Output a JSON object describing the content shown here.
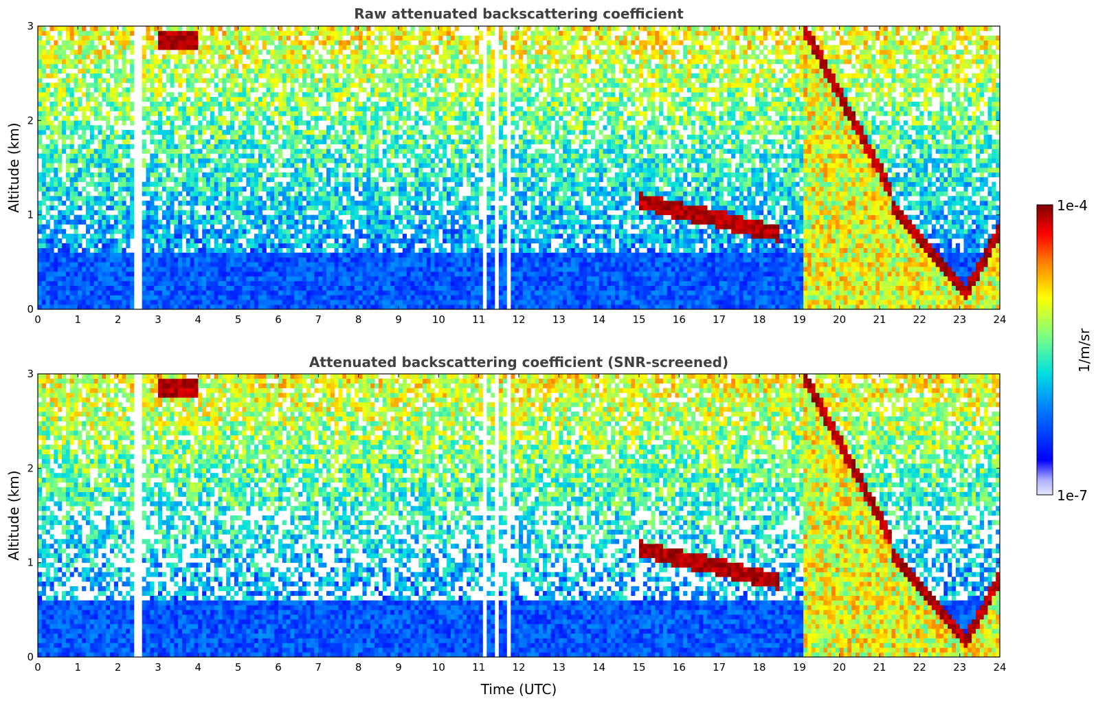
{
  "chart_data": [
    {
      "type": "heatmap",
      "title": "Raw attenuated backscattering coefficient",
      "xlabel": "",
      "ylabel": "Altitude (km)",
      "xlim": [
        0,
        24
      ],
      "ylim": [
        0,
        3
      ],
      "xticks": [
        "0",
        "1",
        "2",
        "3",
        "4",
        "5",
        "6",
        "7",
        "8",
        "9",
        "10",
        "11",
        "12",
        "13",
        "14",
        "15",
        "16",
        "17",
        "18",
        "19",
        "20",
        "21",
        "22",
        "23",
        "24"
      ],
      "yticks": [
        "0",
        "1",
        "2",
        "3"
      ],
      "screened": false
    },
    {
      "type": "heatmap",
      "title": "Attenuated backscattering coefficient (SNR-screened)",
      "xlabel": "Time (UTC)",
      "ylabel": "Altitude (km)",
      "xlim": [
        0,
        24
      ],
      "ylim": [
        0,
        3
      ],
      "xticks": [
        "0",
        "1",
        "2",
        "3",
        "4",
        "5",
        "6",
        "7",
        "8",
        "9",
        "10",
        "11",
        "12",
        "13",
        "14",
        "15",
        "16",
        "17",
        "18",
        "19",
        "20",
        "21",
        "22",
        "23",
        "24"
      ],
      "yticks": [
        "0",
        "1",
        "2",
        "3"
      ],
      "screened": true
    }
  ],
  "colorbar": {
    "label": "1/m/sr",
    "max_label": "1e-4",
    "min_label": "1e-7",
    "scale": "log",
    "colormap": [
      "#e6e6ff",
      "#0000ff",
      "#0080ff",
      "#00e0e0",
      "#80ff80",
      "#ffff00",
      "#ff8000",
      "#ff0000",
      "#800000"
    ]
  }
}
